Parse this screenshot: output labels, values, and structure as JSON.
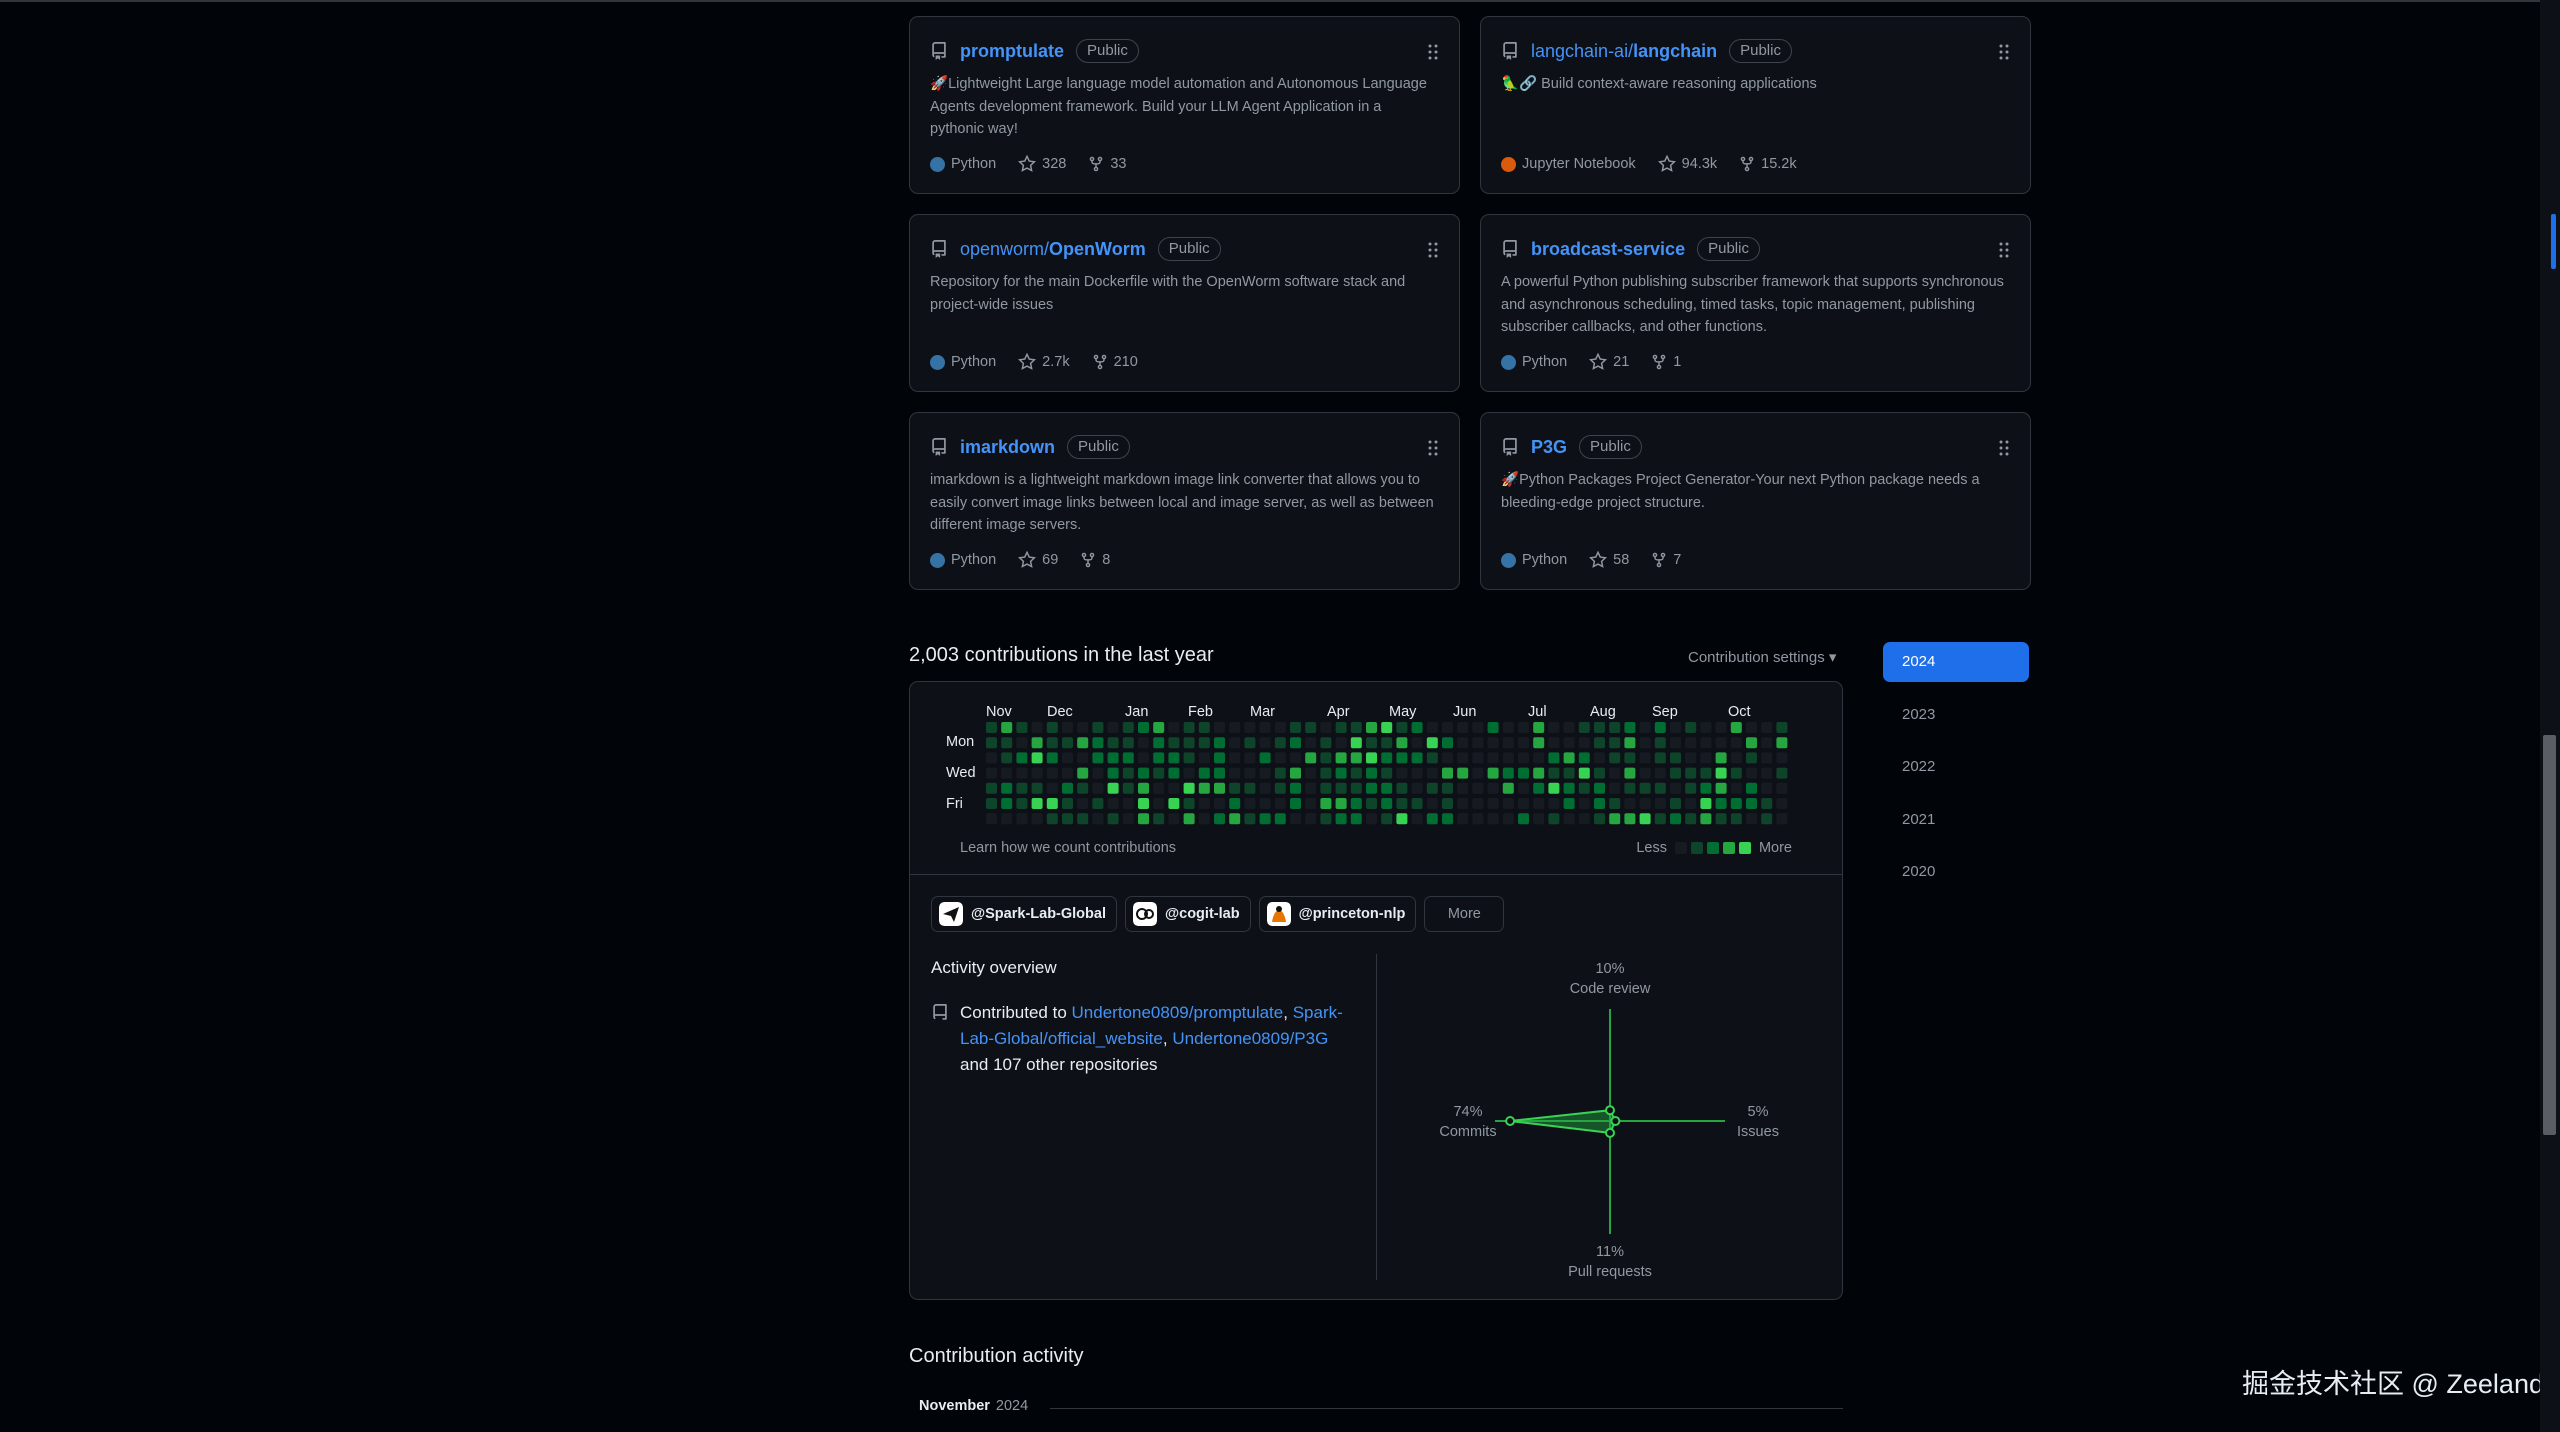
{
  "pinned": [
    {
      "name": "promptulate",
      "owner": "",
      "badge": "Public",
      "emoji": "🚀",
      "desc": "Lightweight Large language model automation and Autonomous Language Agents development framework. Build your LLM Agent Application in a pythonic way!",
      "language": "Python",
      "lang_color": "#3572A5",
      "stars": "328",
      "forks": "33"
    },
    {
      "name": "langchain",
      "owner": "langchain-ai/",
      "badge": "Public",
      "emoji": "🦜🔗",
      "desc": "Build context-aware reasoning applications",
      "language": "Jupyter Notebook",
      "lang_color": "#DA5B0B",
      "stars": "94.3k",
      "forks": "15.2k"
    },
    {
      "name": "OpenWorm",
      "owner": "openworm/",
      "badge": "Public",
      "emoji": "",
      "desc": "Repository for the main Dockerfile with the OpenWorm software stack and project-wide issues",
      "language": "Python",
      "lang_color": "#3572A5",
      "stars": "2.7k",
      "forks": "210"
    },
    {
      "name": "broadcast-service",
      "owner": "",
      "badge": "Public",
      "emoji": "",
      "desc": "A powerful Python publishing subscriber framework that supports synchronous and asynchronous scheduling, timed tasks, topic management, publishing subscriber callbacks, and other functions.",
      "language": "Python",
      "lang_color": "#3572A5",
      "stars": "21",
      "forks": "1"
    },
    {
      "name": "imarkdown",
      "owner": "",
      "badge": "Public",
      "emoji": "",
      "desc": "imarkdown is a lightweight markdown image link converter that allows you to easily convert image links between local and image server, as well as between different image servers.",
      "language": "Python",
      "lang_color": "#3572A5",
      "stars": "69",
      "forks": "8"
    },
    {
      "name": "P3G",
      "owner": "",
      "badge": "Public",
      "emoji": "🚀",
      "desc": "Python Packages Project Generator-Your next Python package needs a bleeding-edge project structure.",
      "language": "Python",
      "lang_color": "#3572A5",
      "stars": "58",
      "forks": "7"
    }
  ],
  "contrib": {
    "title": "2,003 contributions in the last year",
    "settings": "Contribution settings ▾",
    "months": [
      "Nov",
      "Dec",
      "Jan",
      "Feb",
      "Mar",
      "Apr",
      "May",
      "Jun",
      "Jul",
      "Aug",
      "Sep",
      "Oct"
    ],
    "days": [
      "Mon",
      "Wed",
      "Fri"
    ],
    "learn": "Learn how we count contributions",
    "less": "Less",
    "more": "More",
    "levels": [
      "#161b22",
      "#0e4429",
      "#006d32",
      "#26a641",
      "#39d353"
    ]
  },
  "orgs": [
    {
      "label": "@Spark-Lab-Global",
      "icon": "paper-plane-icon"
    },
    {
      "label": "@cogit-lab",
      "icon": "cogit-logo-icon"
    },
    {
      "label": "@princeton-nlp",
      "icon": "princeton-logo-icon"
    }
  ],
  "orgs_more": "More",
  "overview": {
    "title": "Activity overview",
    "prefix": "Contributed to",
    "repo1": "Undertone0809/promptulate",
    "sep1": ",",
    "repo2": "Spark-Lab-Global/official_website",
    "sep2": ",",
    "repo3": "Undertone0809/P3G",
    "suffix": " and 107 other repositories"
  },
  "radar": {
    "code_review_pct": "10%",
    "code_review": "Code review",
    "commits_pct": "74%",
    "commits": "Commits",
    "issues_pct": "5%",
    "issues": "Issues",
    "pr_pct": "11%",
    "pr": "Pull requests",
    "values": {
      "commits": 74,
      "code_review": 10,
      "issues": 5,
      "pull_requests": 11
    }
  },
  "years": [
    "2024",
    "2023",
    "2022",
    "2021",
    "2020"
  ],
  "activity": {
    "title": "Contribution activity",
    "month": "November",
    "year": "2024"
  },
  "watermark": "掘金技术社区 @ Zeeland"
}
